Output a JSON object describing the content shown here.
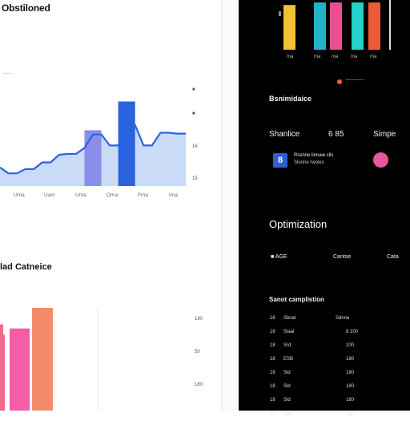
{
  "header": {
    "title": "Obstiloned"
  },
  "line_chart": {
    "caption": "——",
    "y_ticks": [
      "■",
      "■",
      "16",
      "15"
    ],
    "x_ticks": [
      "Uma",
      "Uam",
      "Uma",
      "Oma",
      "Fma",
      "Ima"
    ]
  },
  "bar_section": {
    "title": "lad Catneice",
    "y_ticks": [
      "180",
      "50",
      "180"
    ]
  },
  "right_panel": {
    "top_x_ticks": [
      "ma",
      "ma",
      "ma",
      "ma",
      "ma"
    ],
    "legend_label": "————",
    "section1_title": "Bsnimidaice",
    "stats": {
      "label1": "Shanlice",
      "value": "6 85",
      "label2": "Simpe"
    },
    "info_row": {
      "icon_text": "8",
      "line1": "Rssnne linnaw clls",
      "line2": "Slonne rwoles"
    },
    "optimization": {
      "title": "Optimization",
      "row": [
        "■ AGE",
        "Cantse",
        "Cata"
      ]
    },
    "table": {
      "title": "Sanot camplistion",
      "headers": [
        "16",
        "Sbnal",
        "Sdnne"
      ],
      "rows": [
        [
          "16",
          "Slaal",
          "8 100"
        ],
        [
          "18",
          "Srd",
          "100"
        ],
        [
          "18",
          "ESB",
          "180"
        ],
        [
          "18",
          "Sld",
          "180"
        ],
        [
          "18",
          "Sld",
          "180"
        ],
        [
          "18",
          "Sld",
          "180"
        ],
        [
          "18",
          "Sad",
          "180"
        ]
      ]
    }
  },
  "chart_data": [
    {
      "type": "area",
      "title": "",
      "x": [
        0,
        1,
        2,
        3,
        4,
        5,
        6,
        7,
        8,
        9,
        10,
        11,
        12,
        13,
        14,
        15,
        16,
        17,
        18,
        19,
        20,
        21,
        22
      ],
      "series": [
        {
          "values": [
            22,
            15,
            15,
            20,
            20,
            28,
            28,
            37,
            38,
            38,
            45,
            61,
            61,
            48,
            48,
            72,
            72,
            48,
            48,
            63,
            63,
            62,
            62
          ]
        }
      ],
      "highlight_bars": [
        {
          "x_start": 10,
          "x_end": 12,
          "value": 66,
          "color": "#8a8ee8"
        },
        {
          "x_start": 14,
          "x_end": 16,
          "value": 100,
          "color": "#2a63df"
        }
      ],
      "ylim": [
        0,
        110
      ],
      "colors": {
        "fill": "#c9dbf7",
        "line": "#2a63df"
      }
    },
    {
      "type": "bar",
      "title": "",
      "series": [
        {
          "values": [
            74,
            80,
            100,
            84
          ],
          "colors": [
            "#f0639a",
            "#f35ea6",
            "#f38b6a",
            "#f16a89"
          ]
        }
      ],
      "ylim": [
        0,
        100
      ]
    },
    {
      "type": "bar",
      "title": "",
      "series": [
        {
          "values": [
            90,
            95,
            95,
            95,
            95
          ],
          "colors": [
            "#f1c232",
            "#22b3c6",
            "#ea4f94",
            "#22d2c8",
            "#f05a3a"
          ]
        }
      ],
      "ylim": [
        0,
        100
      ]
    }
  ]
}
